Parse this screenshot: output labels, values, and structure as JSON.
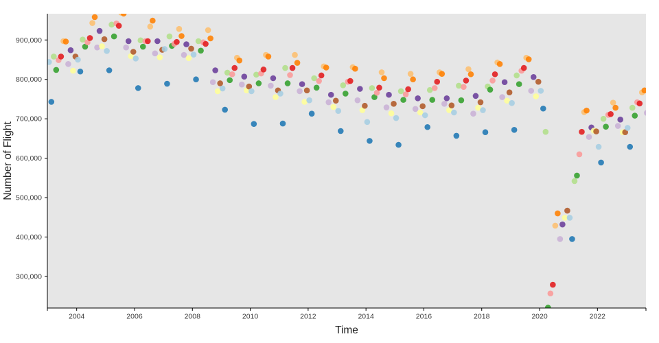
{
  "figure": {
    "background": "#ffffff",
    "plot_background": "#e6e6e6",
    "axis_color": "#000000",
    "tick_text_color": "#3b3b3b",
    "title_text_color": "#1f1f1f"
  },
  "chart_data": {
    "type": "scatter",
    "title": "",
    "xlabel": "Time",
    "ylabel": "Number of Flight",
    "x_domain": [
      2002.987,
      2023.677
    ],
    "y_domain": [
      220000,
      966600
    ],
    "x_ticks": [
      2004,
      2006,
      2008,
      2010,
      2012,
      2014,
      2016,
      2018,
      2020,
      2022
    ],
    "y_ticks": [
      300000,
      400000,
      500000,
      600000,
      700000,
      800000,
      900000
    ],
    "grid": false,
    "legend_position": "none",
    "point_color_by": "month",
    "month_palette": [
      "#a6cee3",
      "#1f78b4",
      "#b2df8a",
      "#33a02c",
      "#fb9a99",
      "#e31a1c",
      "#fdbf6f",
      "#ff7f00",
      "#cab2d6",
      "#6a3d9a",
      "#ffff99",
      "#b15928"
    ],
    "series": [
      {
        "year": 2003,
        "monthly_flights": [
          844000,
          743000,
          858000,
          824000,
          849000,
          858000,
          897000,
          896000,
          839000,
          874000,
          822000,
          858000
        ]
      },
      {
        "year": 2004,
        "monthly_flights": [
          850000,
          820000,
          901000,
          883000,
          894000,
          905000,
          943000,
          958000,
          881000,
          923000,
          884000,
          902000
        ]
      },
      {
        "year": 2005,
        "monthly_flights": [
          872000,
          823000,
          939000,
          909000,
          942000,
          936000,
          969000,
          967000,
          881000,
          897000,
          859000,
          870000
        ]
      },
      {
        "year": 2006,
        "monthly_flights": [
          853000,
          778000,
          899000,
          883000,
          897000,
          897000,
          934000,
          949000,
          866000,
          897000,
          856000,
          875000
        ]
      },
      {
        "year": 2007,
        "monthly_flights": [
          877000,
          789000,
          909000,
          885000,
          890000,
          895000,
          928000,
          910000,
          862000,
          889000,
          854000,
          878000
        ]
      },
      {
        "year": 2008,
        "monthly_flights": [
          863000,
          800000,
          897000,
          873000,
          894000,
          890000,
          925000,
          904000,
          793000,
          823000,
          770000,
          790000
        ]
      },
      {
        "year": 2009,
        "monthly_flights": [
          777000,
          723000,
          817000,
          798000,
          813000,
          829000,
          855000,
          848000,
          787000,
          807000,
          772000,
          782000
        ]
      },
      {
        "year": 2010,
        "monthly_flights": [
          770000,
          687000,
          812000,
          790000,
          815000,
          825000,
          862000,
          858000,
          784000,
          803000,
          755000,
          772000
        ]
      },
      {
        "year": 2011,
        "monthly_flights": [
          764000,
          688000,
          829000,
          790000,
          811000,
          829000,
          862000,
          842000,
          770000,
          788000,
          743000,
          772000
        ]
      },
      {
        "year": 2012,
        "monthly_flights": [
          747000,
          713000,
          803000,
          779000,
          796000,
          810000,
          833000,
          830000,
          742000,
          761000,
          730000,
          746000
        ]
      },
      {
        "year": 2013,
        "monthly_flights": [
          720000,
          669000,
          785000,
          764000,
          794000,
          796000,
          831000,
          827000,
          747000,
          776000,
          722000,
          733000
        ]
      },
      {
        "year": 2014,
        "monthly_flights": [
          692000,
          644000,
          778000,
          755000,
          766000,
          779000,
          818000,
          803000,
          729000,
          761000,
          714000,
          738000
        ]
      },
      {
        "year": 2015,
        "monthly_flights": [
          702000,
          634000,
          770000,
          748000,
          762000,
          775000,
          814000,
          800000,
          725000,
          752000,
          716000,
          732000
        ]
      },
      {
        "year": 2016,
        "monthly_flights": [
          709000,
          679000,
          773000,
          748000,
          778000,
          794000,
          818000,
          814000,
          738000,
          752000,
          722000,
          734000
        ]
      },
      {
        "year": 2017,
        "monthly_flights": [
          716000,
          657000,
          784000,
          747000,
          781000,
          797000,
          826000,
          813000,
          713000,
          758000,
          728000,
          742000
        ]
      },
      {
        "year": 2018,
        "monthly_flights": [
          722000,
          666000,
          782000,
          774000,
          797000,
          813000,
          843000,
          839000,
          755000,
          793000,
          746000,
          767000
        ]
      },
      {
        "year": 2019,
        "monthly_flights": [
          740000,
          672000,
          810000,
          788000,
          822000,
          829000,
          855000,
          851000,
          771000,
          806000,
          757000,
          794000
        ]
      },
      {
        "year": 2020,
        "monthly_flights": [
          771000,
          726000,
          667000,
          221000,
          257000,
          279000,
          429000,
          460000,
          395000,
          432000,
          449000,
          467000
        ]
      },
      {
        "year": 2021,
        "monthly_flights": [
          449000,
          395000,
          542000,
          556000,
          610000,
          667000,
          717000,
          721000,
          654000,
          678000,
          670000,
          668000
        ]
      },
      {
        "year": 2022,
        "monthly_flights": [
          629000,
          589000,
          700000,
          680000,
          710000,
          712000,
          741000,
          728000,
          682000,
          698000,
          666000,
          666000
        ]
      },
      {
        "year": 2023,
        "monthly_flights": [
          677000,
          629000,
          728000,
          708000,
          742000,
          739000,
          767000,
          772000,
          715000
        ]
      }
    ]
  }
}
